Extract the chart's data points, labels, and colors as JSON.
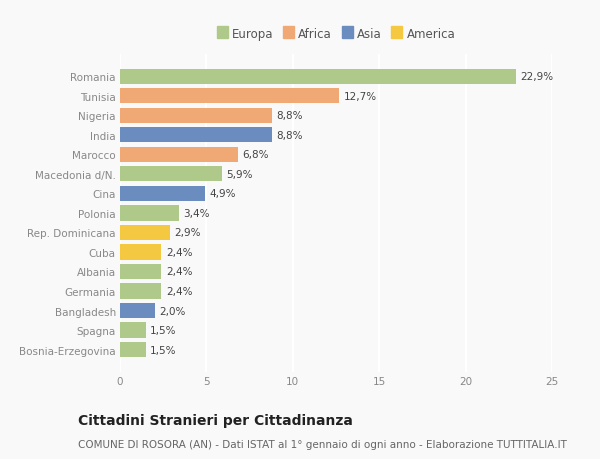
{
  "categories": [
    "Romania",
    "Tunisia",
    "Nigeria",
    "India",
    "Marocco",
    "Macedonia d/N.",
    "Cina",
    "Polonia",
    "Rep. Dominicana",
    "Cuba",
    "Albania",
    "Germania",
    "Bangladesh",
    "Spagna",
    "Bosnia-Erzegovina"
  ],
  "values": [
    22.9,
    12.7,
    8.8,
    8.8,
    6.8,
    5.9,
    4.9,
    3.4,
    2.9,
    2.4,
    2.4,
    2.4,
    2.0,
    1.5,
    1.5
  ],
  "labels": [
    "22,9%",
    "12,7%",
    "8,8%",
    "8,8%",
    "6,8%",
    "5,9%",
    "4,9%",
    "3,4%",
    "2,9%",
    "2,4%",
    "2,4%",
    "2,4%",
    "2,0%",
    "1,5%",
    "1,5%"
  ],
  "continents": [
    "Europa",
    "Africa",
    "Africa",
    "Asia",
    "Africa",
    "Europa",
    "Asia",
    "Europa",
    "America",
    "America",
    "Europa",
    "Europa",
    "Asia",
    "Europa",
    "Europa"
  ],
  "continent_colors": {
    "Europa": "#aec98a",
    "Africa": "#f0a875",
    "Asia": "#6b8cbf",
    "America": "#f5c842"
  },
  "legend_order": [
    "Europa",
    "Africa",
    "Asia",
    "America"
  ],
  "title": "Cittadini Stranieri per Cittadinanza",
  "subtitle": "COMUNE DI ROSORA (AN) - Dati ISTAT al 1° gennaio di ogni anno - Elaborazione TUTTITALIA.IT",
  "xlim": [
    0,
    25
  ],
  "xticks": [
    0,
    5,
    10,
    15,
    20,
    25
  ],
  "background_color": "#f9f9f9",
  "grid_color": "#ffffff",
  "bar_height": 0.78,
  "title_fontsize": 10,
  "subtitle_fontsize": 7.5,
  "label_fontsize": 7.5,
  "tick_fontsize": 7.5,
  "legend_fontsize": 8.5
}
